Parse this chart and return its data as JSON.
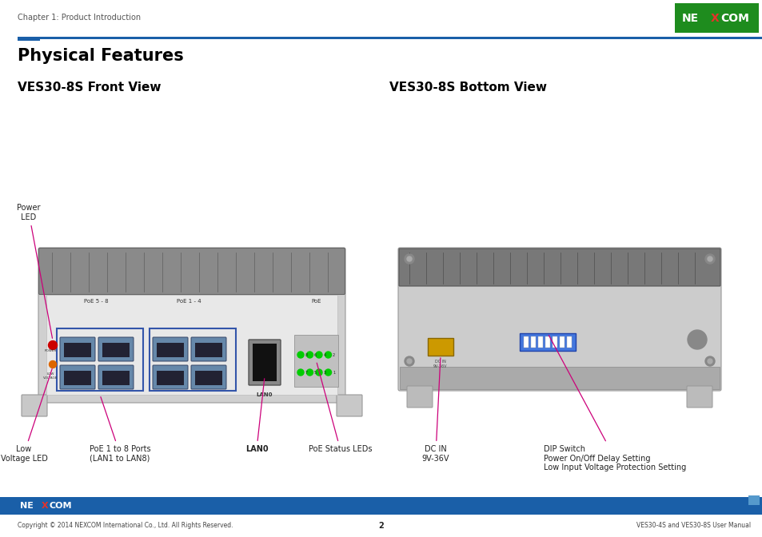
{
  "title": "Physical Features",
  "subtitle_left": "VES30-8S Front View",
  "subtitle_right": "VES30-8S Bottom View",
  "header_text": "Chapter 1: Product Introduction",
  "footer_copyright": "Copyright © 2014 NEXCOM International Co., Ltd. All Rights Reserved.",
  "footer_center": "2",
  "footer_right": "VES30-4S and VES30-8S User Manual",
  "nexcom_logo_bg": "#1e8c1e",
  "nexcom_logo_bg2": "#1a5fa8",
  "nexcom_x_color": "#e8312a",
  "header_bar_color": "#1a5fa8",
  "footer_bar_color": "#1a5fa8",
  "bg_color": "#ffffff",
  "text_color": "#000000",
  "label_color": "#cc007a",
  "title_fontsize": 15,
  "subtitle_fontsize": 11,
  "label_fontsize": 7
}
